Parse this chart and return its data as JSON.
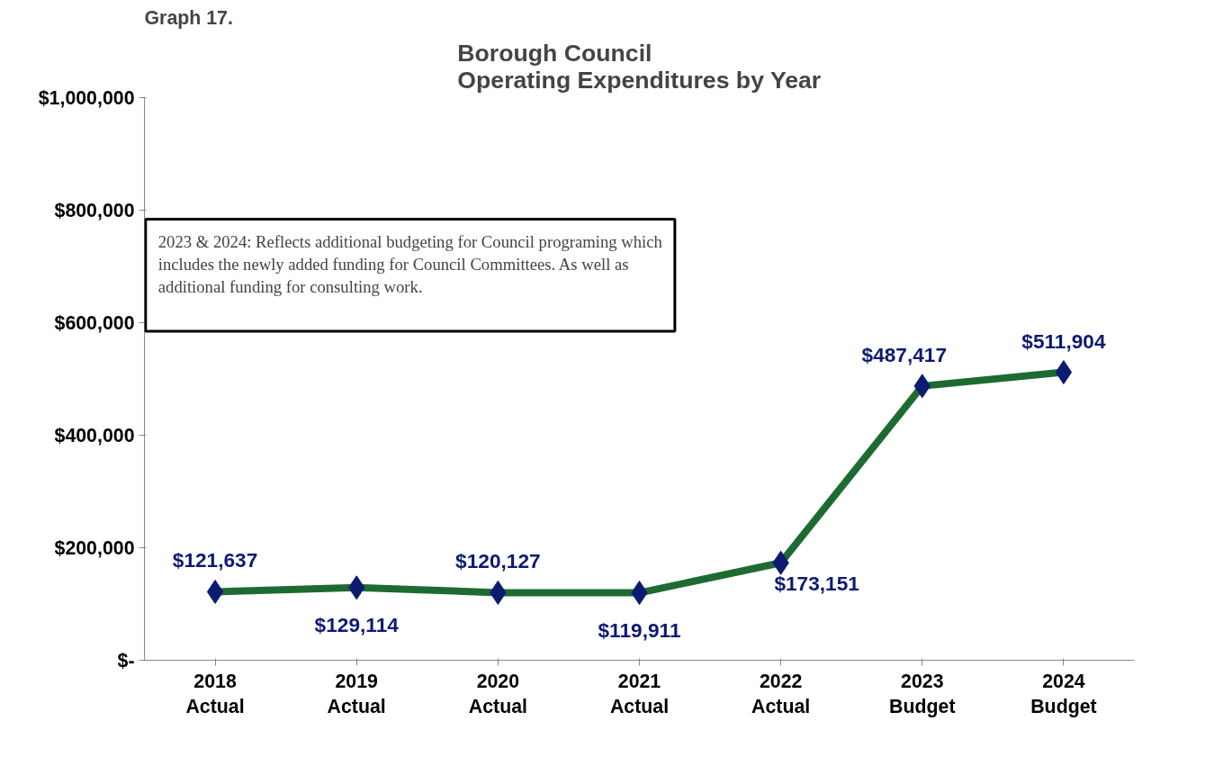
{
  "chart_data": {
    "type": "line",
    "title": "Borough Council\nOperating Expenditures by Year",
    "categories": [
      "2018\nActual",
      "2019\nActual",
      "2020\nActual",
      "2021\nActual",
      "2022\nActual",
      "2023\nBudget",
      "2024\nBudget"
    ],
    "series": [
      {
        "color": "#1d6b32",
        "colors": [
          "#0c1a72",
          "#0c1a72",
          "#0c1a72",
          "#0c1a72",
          "#0c1a72",
          "#0c1a72",
          "#0c1a72"
        ],
        "values": [
          121637,
          129114,
          120127,
          119911,
          173151,
          487417,
          511904
        ],
        "value_labels": [
          "$121,637",
          "$129,114",
          "$120,127",
          "$119,911",
          "$173,151",
          "$487,417",
          "$511,904"
        ]
      }
    ],
    "ylim": [
      0,
      1000000
    ],
    "yticks": [
      {
        "value": 0,
        "label": "$-"
      },
      {
        "value": 200000,
        "label": "$200,000"
      },
      {
        "value": 400000,
        "label": "$400,000"
      },
      {
        "value": 600000,
        "label": "$600,000"
      },
      {
        "value": 800000,
        "label": "$800,000"
      },
      {
        "value": 1000000,
        "label": "$1,000,000"
      }
    ],
    "marker": "diamond",
    "line_style": "solid",
    "grid": false,
    "annotations": [
      "Graph 17.",
      "2023 & 2024: Reflects additional budgeting for Council programing which includes the newly added funding for Council Committees. As well as additional funding for consulting work."
    ]
  }
}
